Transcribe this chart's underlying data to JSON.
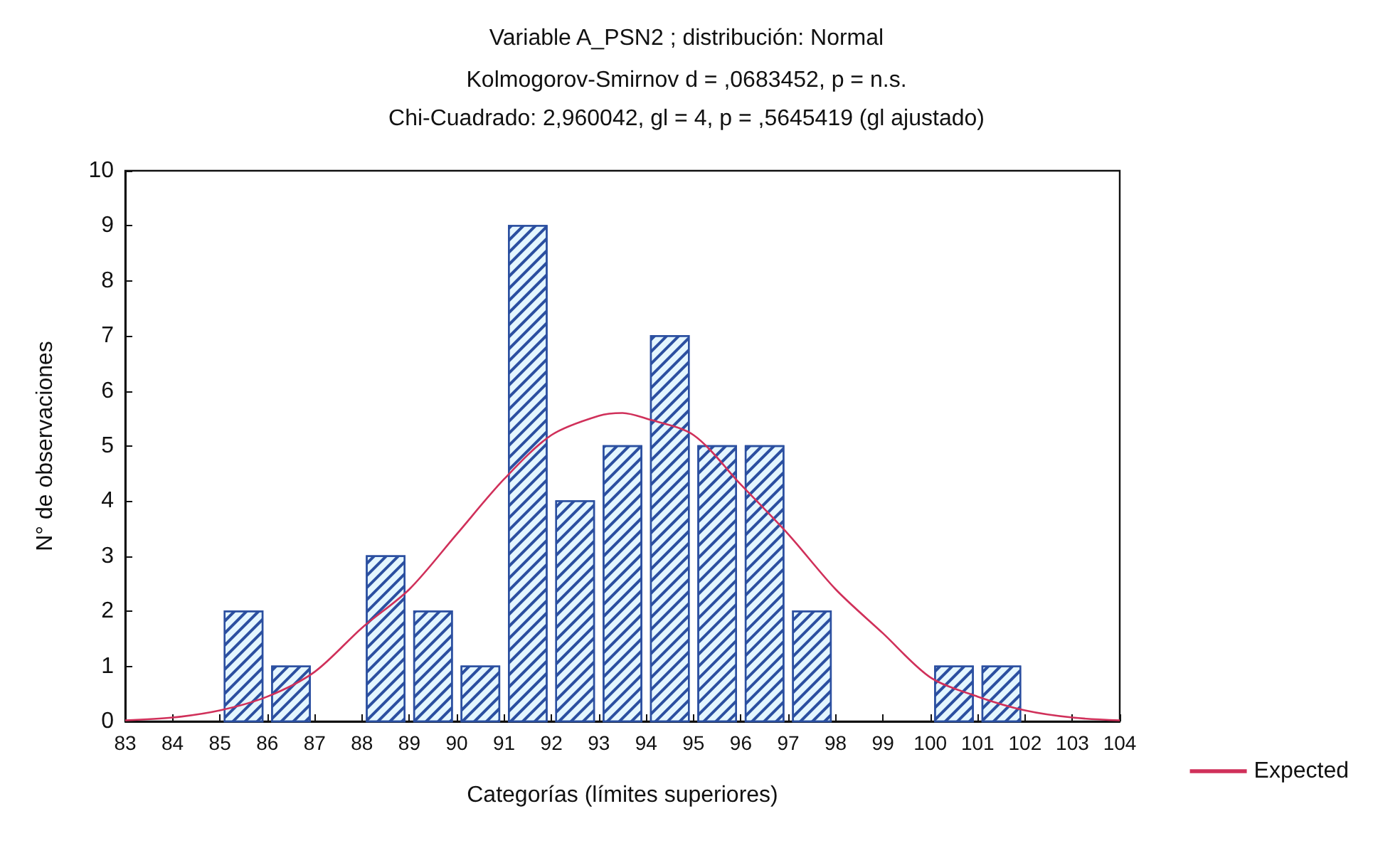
{
  "chart_data": {
    "type": "histogram",
    "title": "Variable A_PSN2 ; distribución: Normal",
    "subtitle": "Kolmogorov-Smirnov d = ,0683452, p = n.s.\nChi-Cuadrado: 2,960042, gl = 4, p = ,5645419 (gl ajustado)",
    "xlabel": "Categorías (límites superiores)",
    "ylabel": "N° de observaciones",
    "bins": [
      83,
      84,
      85,
      86,
      87,
      88,
      89,
      90,
      91,
      92,
      93,
      94,
      95,
      96,
      97,
      98,
      99,
      100,
      101,
      102,
      103,
      104
    ],
    "values": [
      0,
      0,
      2,
      1,
      0,
      3,
      2,
      1,
      9,
      4,
      5,
      7,
      5,
      5,
      2,
      0,
      0,
      1,
      1,
      0,
      0
    ],
    "color": "#2b4fa0",
    "series": [
      {
        "type": "line",
        "name": "Expected",
        "color": "#d0305a",
        "x": [
          83,
          84,
          85,
          86,
          87,
          88,
          89,
          90,
          91,
          92,
          93,
          93.5,
          94,
          95,
          96,
          97,
          98,
          99,
          100,
          101,
          102,
          103,
          104
        ],
        "values": [
          0.02,
          0.07,
          0.2,
          0.45,
          0.9,
          1.7,
          2.4,
          3.4,
          4.4,
          5.2,
          5.55,
          5.6,
          5.5,
          5.2,
          4.3,
          3.4,
          2.4,
          1.6,
          0.8,
          0.45,
          0.2,
          0.07,
          0.02
        ]
      }
    ],
    "xlim": [
      83,
      104
    ],
    "xticks": [
      83,
      84,
      85,
      86,
      87,
      88,
      89,
      90,
      91,
      92,
      93,
      94,
      95,
      96,
      97,
      98,
      99,
      100,
      101,
      102,
      103,
      104
    ],
    "ylim": [
      0,
      10
    ],
    "yticks": [
      0,
      1,
      2,
      3,
      4,
      5,
      6,
      7,
      8,
      9,
      10
    ],
    "grid": false,
    "legend": "bottom right"
  }
}
